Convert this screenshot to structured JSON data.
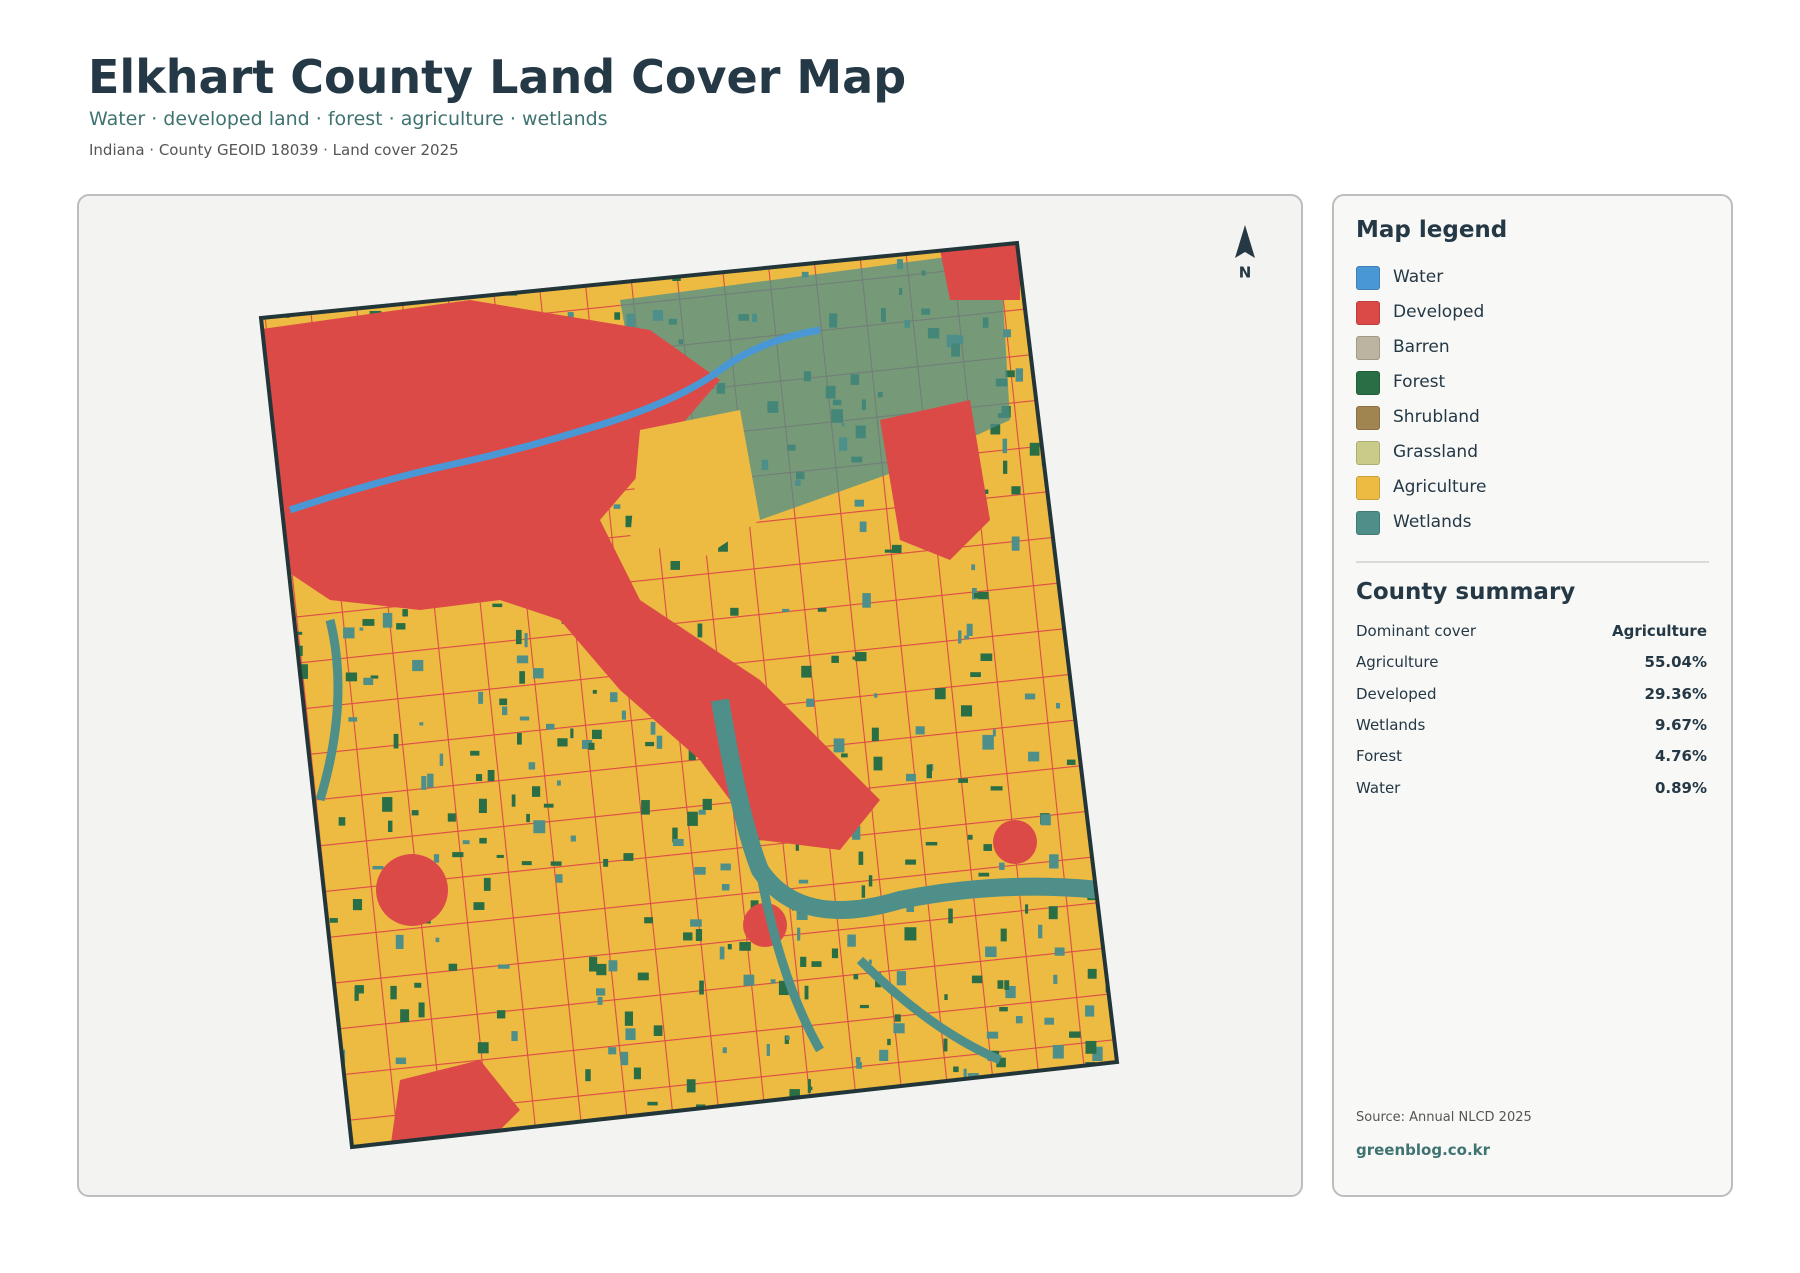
{
  "header": {
    "title": "Elkhart County Land Cover Map",
    "subtitle": "Water · developed land · forest · agriculture · wetlands",
    "meta": "Indiana · County GEOID 18039 · Land cover 2025"
  },
  "map": {
    "north_label": "N"
  },
  "legend": {
    "title": "Map legend",
    "items": [
      {
        "label": "Water",
        "color": "#4a97d6"
      },
      {
        "label": "Developed",
        "color": "#dc4a48"
      },
      {
        "label": "Barren",
        "color": "#bcb3a0"
      },
      {
        "label": "Forest",
        "color": "#2a6e45"
      },
      {
        "label": "Shrubland",
        "color": "#a08550"
      },
      {
        "label": "Grassland",
        "color": "#c9cc88"
      },
      {
        "label": "Agriculture",
        "color": "#edbb42"
      },
      {
        "label": "Wetlands",
        "color": "#4e8f8a"
      }
    ]
  },
  "summary": {
    "title": "County summary",
    "rows": [
      [
        "Dominant cover",
        "Agriculture"
      ],
      [
        "Agriculture",
        "55.04%"
      ],
      [
        "Developed",
        "29.36%"
      ],
      [
        "Wetlands",
        "9.67%"
      ],
      [
        "Forest",
        "4.76%"
      ],
      [
        "Water",
        "0.89%"
      ]
    ]
  },
  "footer": {
    "source": "Source: Annual NLCD 2025",
    "site": "greenblog.co.kr"
  }
}
